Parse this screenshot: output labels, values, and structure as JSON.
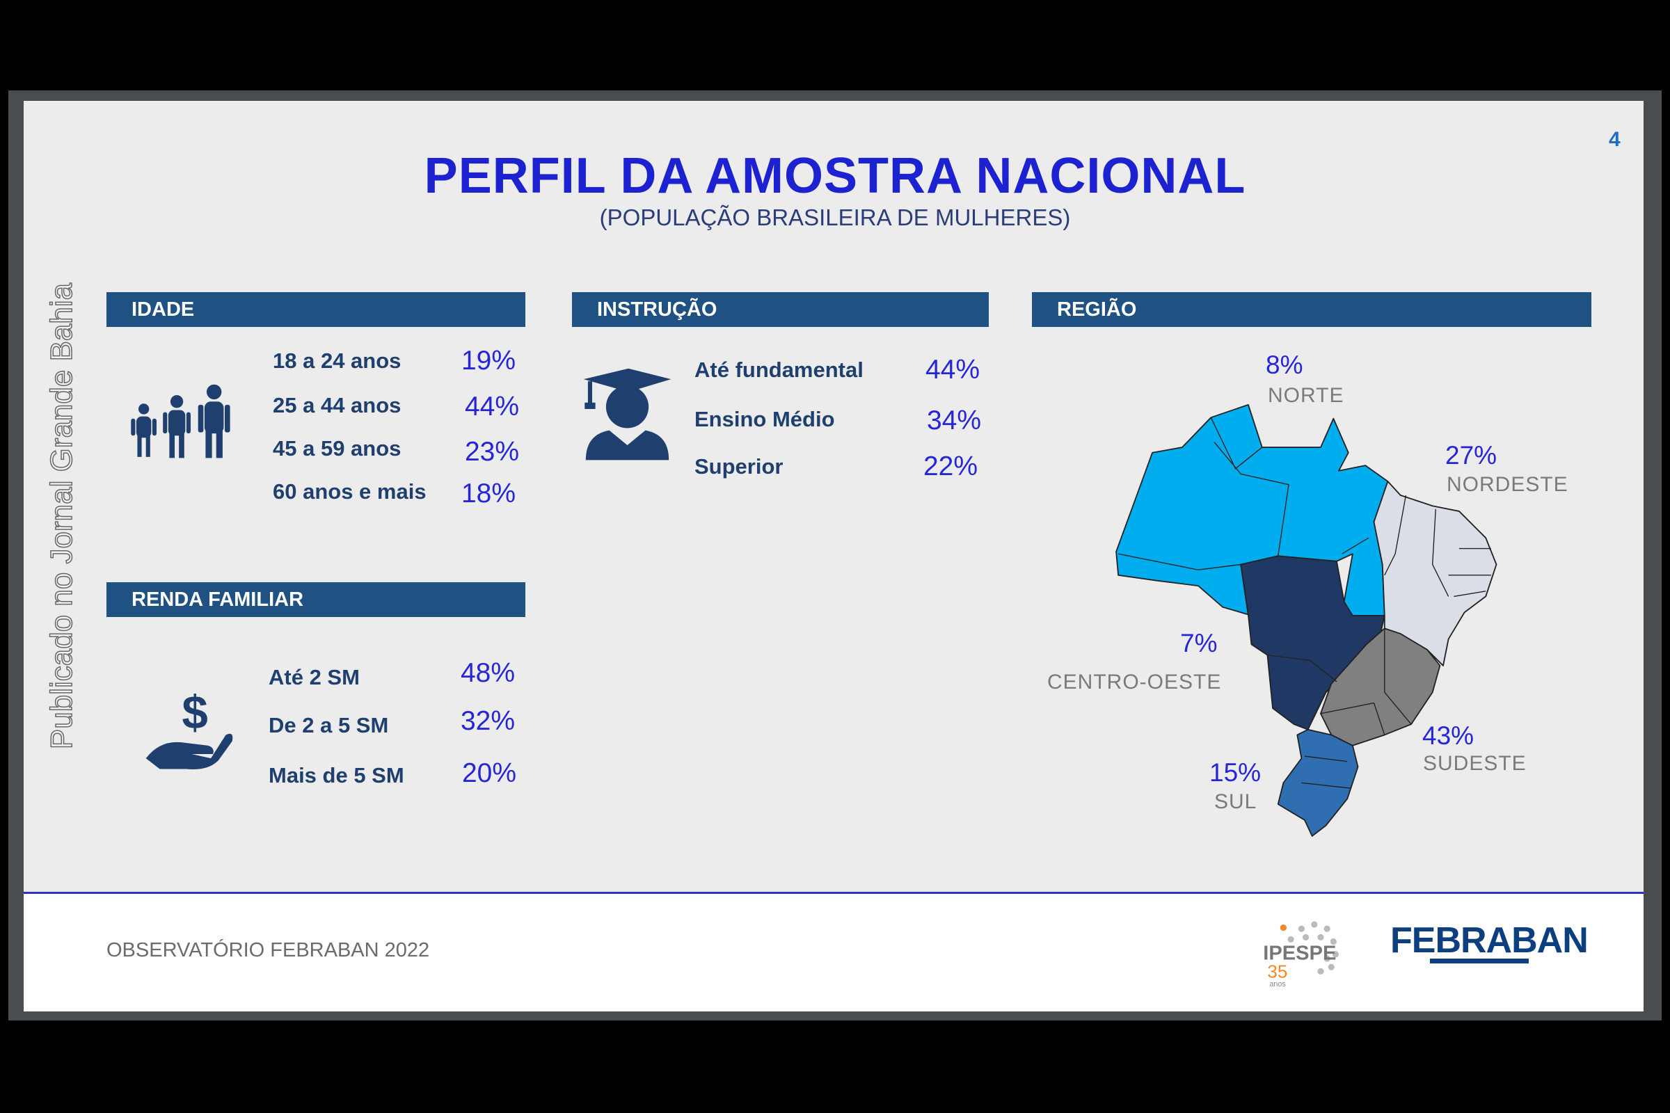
{
  "slide": {
    "title": "PERFIL DA AMOSTRA NACIONAL",
    "subtitle": "(POPULAÇÃO BRASILEIRA DE MULHERES)",
    "page_number": "4",
    "watermark": "Publicado no Jornal Grande Bahia"
  },
  "idade": {
    "header": "IDADE",
    "icon": "family-icon",
    "rows": [
      {
        "label": "18 a 24 anos",
        "value": "19%"
      },
      {
        "label": "25 a 44 anos",
        "value": "44%"
      },
      {
        "label": "45 a 59 anos",
        "value": "23%"
      },
      {
        "label": "60 anos e mais",
        "value": "18%"
      }
    ]
  },
  "instrucao": {
    "header": "INSTRUÇÃO",
    "icon": "graduate-icon",
    "rows": [
      {
        "label": "Até fundamental",
        "value": "44%"
      },
      {
        "label": "Ensino Médio",
        "value": "34%"
      },
      {
        "label": "Superior",
        "value": "22%"
      }
    ]
  },
  "renda": {
    "header": "RENDA FAMILIAR",
    "icon": "hand-money-icon",
    "rows": [
      {
        "label": "Até 2 SM",
        "value": "48%"
      },
      {
        "label": "De 2 a 5 SM",
        "value": "32%"
      },
      {
        "label": "Mais de 5 SM",
        "value": "20%"
      }
    ]
  },
  "regiao": {
    "header": "REGIÃO",
    "regions": [
      {
        "name": "NORTE",
        "value": "8%",
        "color": "#00aeef"
      },
      {
        "name": "NORDESTE",
        "value": "27%",
        "color": "#d9dee7"
      },
      {
        "name": "CENTRO-OESTE",
        "value": "7%",
        "color": "#1f3864"
      },
      {
        "name": "SUDESTE",
        "value": "43%",
        "color": "#808080"
      },
      {
        "name": "SUL",
        "value": "15%",
        "color": "#2f6fb1"
      }
    ]
  },
  "footer": {
    "text": "OBSERVATÓRIO FEBRABAN 2022",
    "logos": [
      "IPESPE 35 anos",
      "FEBRABAN"
    ]
  },
  "colors": {
    "header_bar": "#1f5282",
    "title": "#1c22d0",
    "percent": "#2626d8",
    "rule": "#2b35c8"
  }
}
